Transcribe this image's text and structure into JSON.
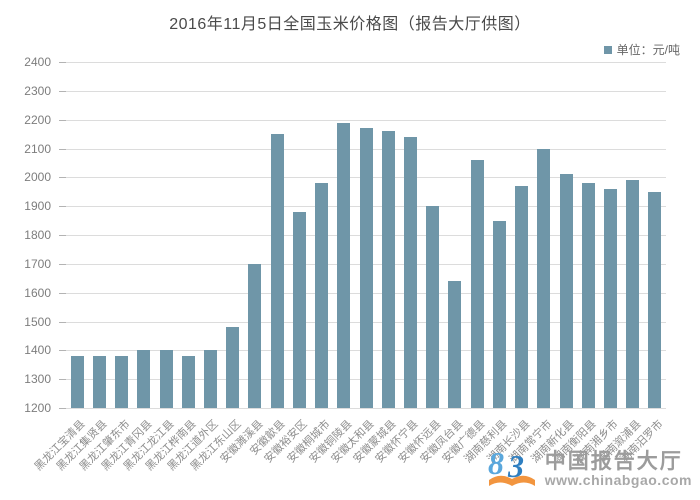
{
  "title": "2016年11月5日全国玉米价格图（报告大厅供图）",
  "legend": {
    "label": "单位：元/吨"
  },
  "accent_color": "#6F96A8",
  "grid_color": "#dcdcdc",
  "watermark": {
    "name": "中国报告大厅",
    "url": "www.chinabgao.com"
  },
  "chart_data": {
    "type": "bar",
    "title": "2016年11月5日全国玉米价格图（报告大厅供图）",
    "unit_label": "单位：元/吨",
    "categories": [
      "黑龙江宝清县",
      "黑龙江集贤县",
      "黑龙江肇东市",
      "黑龙江青冈县",
      "黑龙江龙江县",
      "黑龙江桦南县",
      "黑龙江道外区",
      "黑龙江东山区",
      "安徽濉溪县",
      "安徽歙县",
      "安徽裕安区",
      "安徽桐城市",
      "安徽铜陵县",
      "安徽太和县",
      "安徽蒙城县",
      "安徽怀宁县",
      "安徽怀远县",
      "安徽凤台县",
      "安徽广德县",
      "湖南慈利县",
      "湖南长沙县",
      "湖南常宁市",
      "湖南新化县",
      "湖南衡阳县",
      "湖南湘乡市",
      "湖南溆浦县",
      "湖南汨罗市"
    ],
    "values": [
      1380,
      1380,
      1380,
      1400,
      1400,
      1380,
      1400,
      1480,
      1700,
      2150,
      1880,
      1980,
      2190,
      2170,
      2160,
      2140,
      1900,
      1640,
      2060,
      1850,
      1970,
      2100,
      2010,
      1980,
      1960,
      1990,
      1950
    ],
    "ylabel": "",
    "xlabel": "",
    "ylim": [
      1200,
      2400
    ],
    "ytick_step": 100,
    "bar_color": "#6F96A8",
    "grid": true,
    "legend_position": "top-right"
  }
}
